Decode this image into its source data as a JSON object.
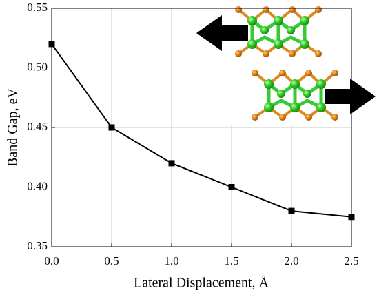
{
  "chart_data": {
    "type": "line",
    "x_label": "Lateral Displacement, Å",
    "y_label": "Band Gap, eV",
    "x": [
      0,
      0.5,
      1,
      1.5,
      2,
      2.5
    ],
    "series": [
      {
        "color": "#000000",
        "values": [
          0.52,
          0.45,
          0.42,
          0.4,
          0.38,
          0.375
        ]
      }
    ],
    "xlim": [
      0,
      2.5
    ],
    "ylim": [
      0.35,
      0.55
    ],
    "xticks": [
      {
        "value": 0,
        "label": "0.0"
      },
      0.5,
      {
        "value": 1,
        "label": "1.0"
      },
      1.5,
      {
        "value": 2,
        "label": "2.0"
      },
      2.5
    ],
    "yticks": [
      0.35,
      {
        "value": 0.4,
        "label": "0.40"
      },
      0.45,
      {
        "value": 0.5,
        "label": "0.50"
      },
      0.55
    ],
    "grid": true
  }
}
